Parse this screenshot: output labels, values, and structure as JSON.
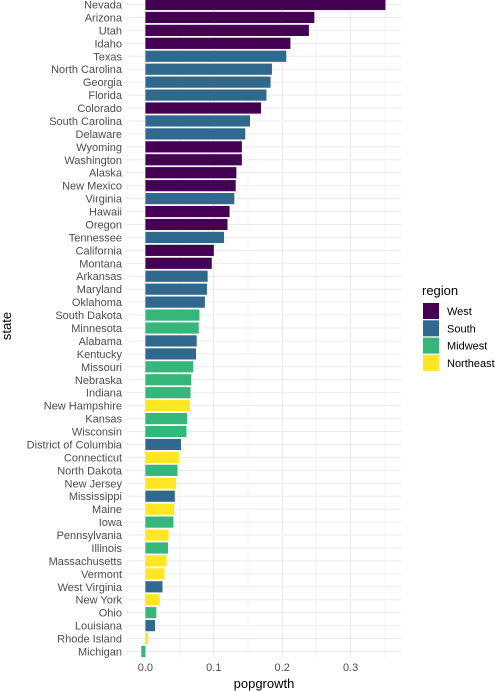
{
  "chart_data": {
    "type": "bar",
    "orientation": "horizontal",
    "xlabel": "popgrowth",
    "ylabel": "state",
    "xlim": [
      -0.018,
      0.37
    ],
    "x_ticks": [
      0.0,
      0.1,
      0.2,
      0.3
    ],
    "x_tick_labels": [
      "0.0",
      "0.1",
      "0.2",
      "0.3"
    ],
    "grid": true,
    "legend_title": "region",
    "legend_position": "right",
    "regions": [
      {
        "name": "West",
        "color": "#440154"
      },
      {
        "name": "South",
        "color": "#31688E"
      },
      {
        "name": "Midwest",
        "color": "#35B779"
      },
      {
        "name": "Northeast",
        "color": "#FDE725"
      }
    ],
    "bars": [
      {
        "state": "Nevada",
        "region": "West",
        "value": 0.351
      },
      {
        "state": "Arizona",
        "region": "West",
        "value": 0.247
      },
      {
        "state": "Utah",
        "region": "West",
        "value": 0.239
      },
      {
        "state": "Idaho",
        "region": "West",
        "value": 0.212
      },
      {
        "state": "Texas",
        "region": "South",
        "value": 0.206
      },
      {
        "state": "North Carolina",
        "region": "South",
        "value": 0.185
      },
      {
        "state": "Georgia",
        "region": "South",
        "value": 0.183
      },
      {
        "state": "Florida",
        "region": "South",
        "value": 0.177
      },
      {
        "state": "Colorado",
        "region": "West",
        "value": 0.169
      },
      {
        "state": "South Carolina",
        "region": "South",
        "value": 0.153
      },
      {
        "state": "Delaware",
        "region": "South",
        "value": 0.146
      },
      {
        "state": "Wyoming",
        "region": "West",
        "value": 0.141
      },
      {
        "state": "Washington",
        "region": "West",
        "value": 0.141
      },
      {
        "state": "Alaska",
        "region": "West",
        "value": 0.133
      },
      {
        "state": "New Mexico",
        "region": "West",
        "value": 0.132
      },
      {
        "state": "Virginia",
        "region": "South",
        "value": 0.13
      },
      {
        "state": "Hawaii",
        "region": "West",
        "value": 0.123
      },
      {
        "state": "Oregon",
        "region": "West",
        "value": 0.12
      },
      {
        "state": "Tennessee",
        "region": "South",
        "value": 0.115
      },
      {
        "state": "California",
        "region": "West",
        "value": 0.1
      },
      {
        "state": "Montana",
        "region": "West",
        "value": 0.097
      },
      {
        "state": "Arkansas",
        "region": "South",
        "value": 0.091
      },
      {
        "state": "Maryland",
        "region": "South",
        "value": 0.09
      },
      {
        "state": "Oklahoma",
        "region": "South",
        "value": 0.087
      },
      {
        "state": "South Dakota",
        "region": "Midwest",
        "value": 0.079
      },
      {
        "state": "Minnesota",
        "region": "Midwest",
        "value": 0.078
      },
      {
        "state": "Alabama",
        "region": "South",
        "value": 0.075
      },
      {
        "state": "Kentucky",
        "region": "South",
        "value": 0.074
      },
      {
        "state": "Missouri",
        "region": "Midwest",
        "value": 0.07
      },
      {
        "state": "Nebraska",
        "region": "Midwest",
        "value": 0.067
      },
      {
        "state": "Indiana",
        "region": "Midwest",
        "value": 0.066
      },
      {
        "state": "New Hampshire",
        "region": "Northeast",
        "value": 0.065
      },
      {
        "state": "Kansas",
        "region": "Midwest",
        "value": 0.061
      },
      {
        "state": "Wisconsin",
        "region": "Midwest",
        "value": 0.06
      },
      {
        "state": "District of Columbia",
        "region": "South",
        "value": 0.052
      },
      {
        "state": "Connecticut",
        "region": "Northeast",
        "value": 0.049
      },
      {
        "state": "North Dakota",
        "region": "Midwest",
        "value": 0.047
      },
      {
        "state": "New Jersey",
        "region": "Northeast",
        "value": 0.045
      },
      {
        "state": "Mississippi",
        "region": "South",
        "value": 0.043
      },
      {
        "state": "Maine",
        "region": "Northeast",
        "value": 0.042
      },
      {
        "state": "Iowa",
        "region": "Midwest",
        "value": 0.041
      },
      {
        "state": "Pennsylvania",
        "region": "Northeast",
        "value": 0.034
      },
      {
        "state": "Illinois",
        "region": "Midwest",
        "value": 0.033
      },
      {
        "state": "Massachusetts",
        "region": "Northeast",
        "value": 0.031
      },
      {
        "state": "Vermont",
        "region": "Northeast",
        "value": 0.028
      },
      {
        "state": "West Virginia",
        "region": "South",
        "value": 0.025
      },
      {
        "state": "New York",
        "region": "Northeast",
        "value": 0.021
      },
      {
        "state": "Ohio",
        "region": "Midwest",
        "value": 0.016
      },
      {
        "state": "Louisiana",
        "region": "South",
        "value": 0.014
      },
      {
        "state": "Rhode Island",
        "region": "Northeast",
        "value": 0.004
      },
      {
        "state": "Michigan",
        "region": "Midwest",
        "value": -0.006
      }
    ]
  }
}
